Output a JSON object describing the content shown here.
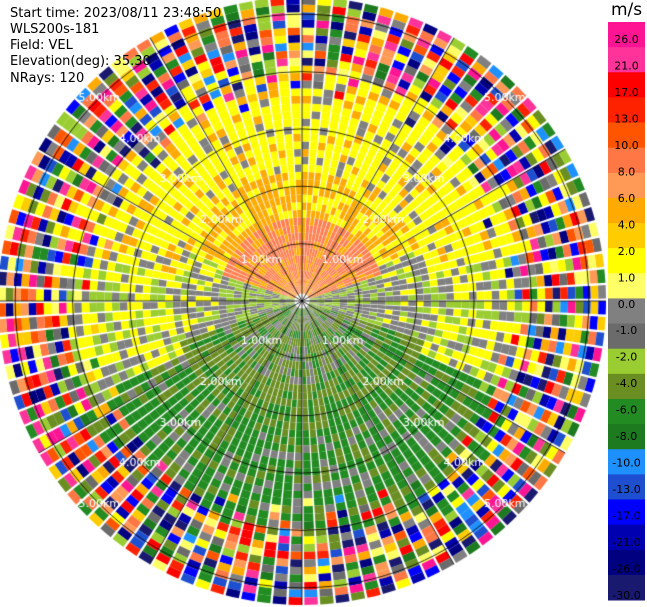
{
  "header": {
    "start_time": "Start time: 2023/08/11 23:48:50",
    "instrument": "WLS200s-181",
    "field": "Field: VEL",
    "elevation": "Elevation(deg): 35.30",
    "nrays": "NRays: 120"
  },
  "colorbar": {
    "unit": "m/s",
    "ticks": [
      "26.0",
      "21.0",
      "17.0",
      "13.0",
      "10.0",
      "8.0",
      "6.0",
      "4.0",
      "2.0",
      "1.0",
      "0.0",
      "-1.0",
      "-2.0",
      "-4.0",
      "-6.0",
      "-8.0",
      "-10.0",
      "-13.0",
      "-17.0",
      "-21.0",
      "-26.0",
      "-30.0"
    ],
    "colors": [
      "#ff1493",
      "#ff3399",
      "#ff0000",
      "#ff2200",
      "#ff5500",
      "#ff7744",
      "#ff9955",
      "#ffaa00",
      "#ffcc00",
      "#ffff00",
      "#ffff66",
      "#808080",
      "#6b6b6b",
      "#9acd32",
      "#6b8e23",
      "#228b22",
      "#1e7a1e",
      "#1e90ff",
      "#1e4fd0",
      "#0000ff",
      "#0000b0",
      "#000080",
      "#191970"
    ]
  },
  "chart_data": {
    "type": "heatmap",
    "subtype": "polar PPI scan (radial velocity)",
    "rays": 120,
    "range_rings_km": [
      1.0,
      2.0,
      3.0,
      4.0,
      5.0
    ],
    "ring_labels": [
      "1.00km",
      "2.00km",
      "3.00km",
      "4.00km",
      "5.00km"
    ],
    "field": "VEL",
    "units": "m/s",
    "colorscale_range": [
      -30.0,
      26.0
    ],
    "pattern": {
      "near_range_north": "positive ~4 to 13 m/s (orange/salmon)",
      "near_range_south": "negative ~-1 to -8 m/s (green)",
      "mid_range": "mix of yellow (~2 m/s), grey (~0 m/s) and green",
      "far_range": "noise: random colours across full scale"
    }
  }
}
